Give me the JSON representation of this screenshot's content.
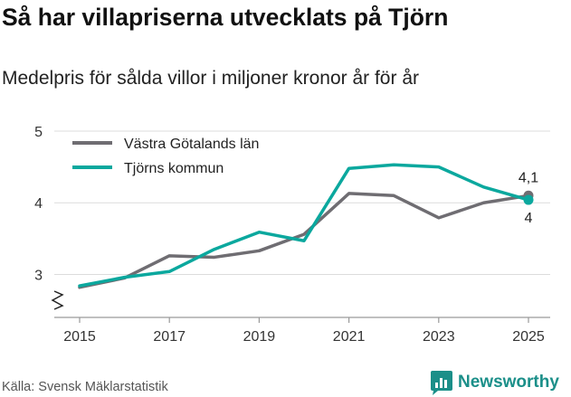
{
  "header": {
    "title": "Så har villapriserna utvecklats på Tjörn",
    "subtitle": "Medelpris för sålda villor i miljoner kronor år för år"
  },
  "footer": {
    "source": "Källa: Svensk Mäklarstatistik",
    "brand": "Newsworthy"
  },
  "colors": {
    "vastra_gotaland": "#6f6d72",
    "tjorn": "#0ba89e",
    "brand": "#1b8f89"
  },
  "chart_data": {
    "type": "line",
    "title": "Så har villapriserna utvecklats på Tjörn",
    "subtitle": "Medelpris för sålda villor i miljoner kronor år för år",
    "xlabel": "",
    "ylabel": "",
    "x": [
      2015,
      2016,
      2017,
      2018,
      2019,
      2020,
      2021,
      2022,
      2023,
      2024,
      2025
    ],
    "x_ticks": [
      "2015",
      "2017",
      "2019",
      "2021",
      "2023",
      "2025"
    ],
    "y_ticks": [
      "3",
      "4",
      "5"
    ],
    "ylim": [
      2.4,
      5
    ],
    "y_axis_break": true,
    "legend_position": "top-left",
    "grid": true,
    "series": [
      {
        "name": "Västra Götalands län",
        "color": "#6f6d72",
        "values": [
          2.82,
          2.95,
          3.26,
          3.24,
          3.33,
          3.56,
          4.13,
          4.1,
          3.79,
          4.0,
          4.1
        ],
        "end_label": "4,1"
      },
      {
        "name": "Tjörns kommun",
        "color": "#0ba89e",
        "values": [
          2.84,
          2.96,
          3.04,
          3.35,
          3.59,
          3.47,
          4.48,
          4.53,
          4.5,
          4.22,
          4.04
        ],
        "end_label": "4"
      }
    ]
  }
}
